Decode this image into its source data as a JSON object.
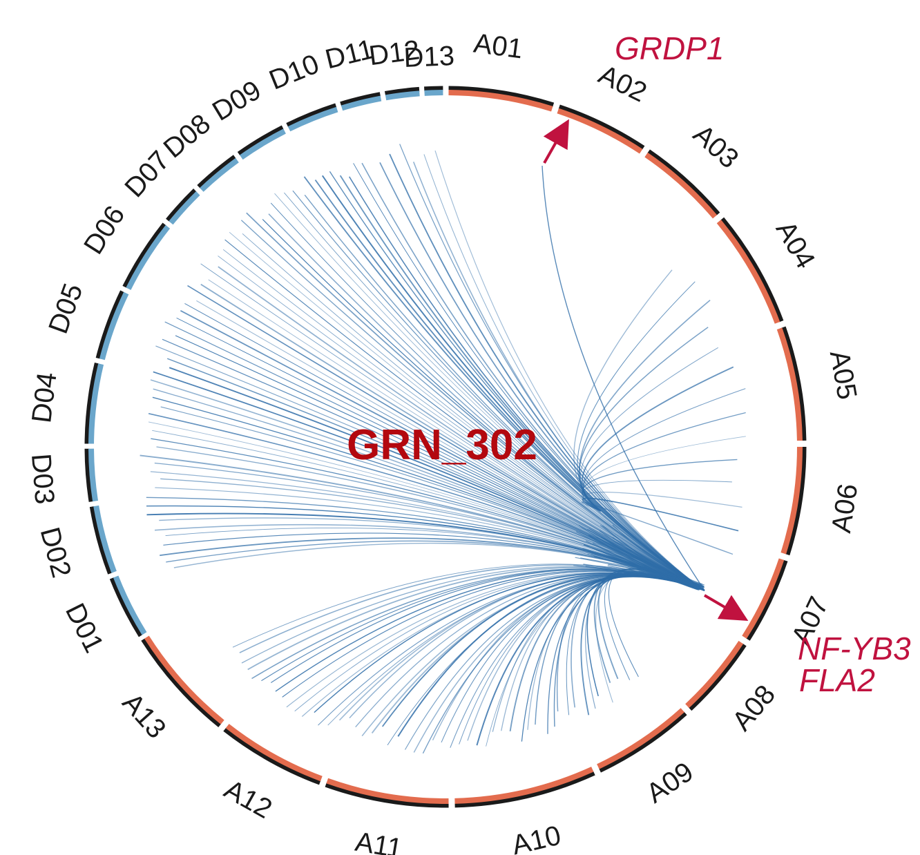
{
  "title": "GRN_302",
  "colors": {
    "a_genome": "#e36c4e",
    "d_genome": "#6aa6cb",
    "outline": "#1a1a1a",
    "link": "#2f6da8",
    "highlight": "#c0123f",
    "title": "#b3080f"
  },
  "chromosomes": [
    {
      "name": "A01",
      "genome": "A"
    },
    {
      "name": "A02",
      "genome": "A"
    },
    {
      "name": "A03",
      "genome": "A"
    },
    {
      "name": "A04",
      "genome": "A"
    },
    {
      "name": "A05",
      "genome": "A"
    },
    {
      "name": "A06",
      "genome": "A"
    },
    {
      "name": "A07",
      "genome": "A"
    },
    {
      "name": "A08",
      "genome": "A"
    },
    {
      "name": "A09",
      "genome": "A"
    },
    {
      "name": "A10",
      "genome": "A"
    },
    {
      "name": "A11",
      "genome": "A"
    },
    {
      "name": "A12",
      "genome": "A"
    },
    {
      "name": "A13",
      "genome": "A"
    },
    {
      "name": "D01",
      "genome": "D"
    },
    {
      "name": "D02",
      "genome": "D"
    },
    {
      "name": "D03",
      "genome": "D"
    },
    {
      "name": "D04",
      "genome": "D"
    },
    {
      "name": "D05",
      "genome": "D"
    },
    {
      "name": "D06",
      "genome": "D"
    },
    {
      "name": "D07",
      "genome": "D"
    },
    {
      "name": "D08",
      "genome": "D"
    },
    {
      "name": "D09",
      "genome": "D"
    },
    {
      "name": "D10",
      "genome": "D"
    },
    {
      "name": "D11",
      "genome": "D"
    },
    {
      "name": "D12",
      "genome": "D"
    },
    {
      "name": "D13",
      "genome": "D"
    }
  ],
  "highlights": [
    {
      "genes": [
        "GRDP1"
      ],
      "chromosome": "A02"
    },
    {
      "genes": [
        "NF-YB3",
        "FLA2"
      ],
      "chromosome": "A07"
    }
  ]
}
